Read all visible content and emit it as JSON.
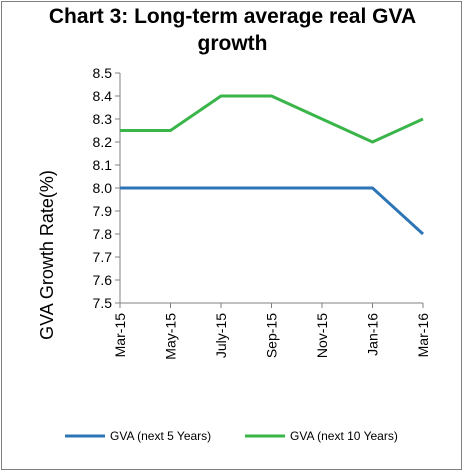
{
  "chart_data": {
    "type": "line",
    "title_line1": "Chart 3: Long-term average real GVA",
    "title_line2": "growth",
    "xlabel": "",
    "ylabel": "GVA Growth Rate(%)",
    "categories": [
      "Mar-15",
      "May-15",
      "July-15",
      "Sep-15",
      "Nov-15",
      "Jan-16",
      "Mar-16"
    ],
    "ylim": [
      7.5,
      8.5
    ],
    "yticks": [
      "8.5",
      "8.4",
      "8.3",
      "8.2",
      "8.1",
      "8.0",
      "7.9",
      "7.8",
      "7.7",
      "7.6",
      "7.5"
    ],
    "grid": false,
    "legend_position": "bottom",
    "series": [
      {
        "name": "GVA (next 5 Years)",
        "color": "#2e75b6",
        "values": [
          8.0,
          8.0,
          8.0,
          8.0,
          8.0,
          8.0,
          7.8
        ]
      },
      {
        "name": "GVA (next 10 Years)",
        "color": "#3ab54a",
        "values": [
          8.25,
          8.25,
          8.4,
          8.4,
          8.3,
          8.2,
          8.3
        ]
      }
    ]
  }
}
